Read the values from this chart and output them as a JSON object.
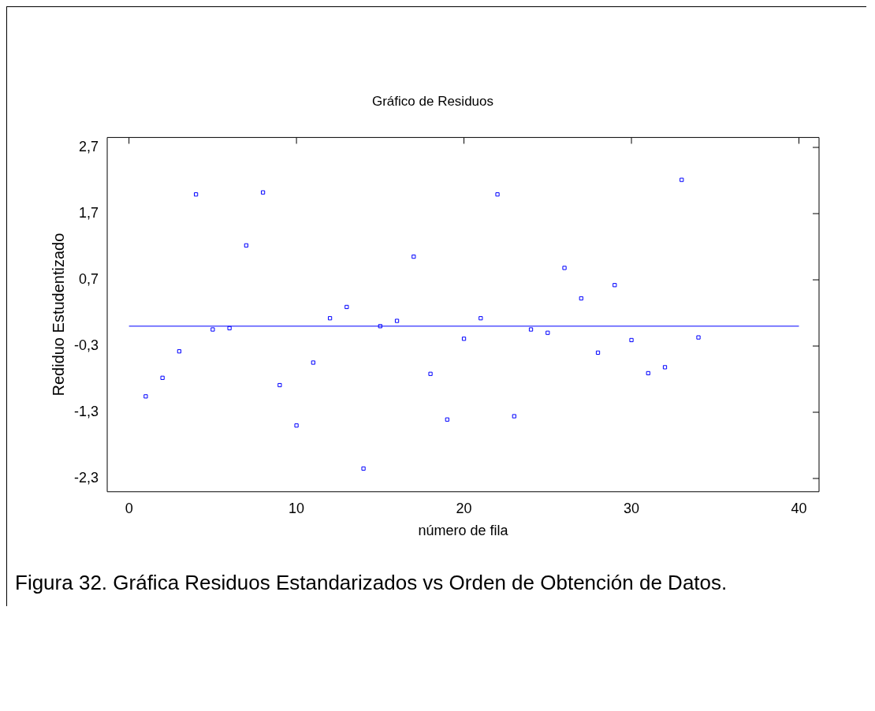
{
  "chart_data": {
    "type": "scatter",
    "title": "Gráfico de Residuos",
    "xlabel": "número de fila",
    "ylabel": "Rediduo Estudentizado",
    "x": [
      1,
      2,
      3,
      4,
      5,
      6,
      7,
      8,
      9,
      10,
      11,
      12,
      13,
      14,
      15,
      16,
      17,
      18,
      19,
      20,
      21,
      22,
      23,
      24,
      25,
      26,
      27,
      28,
      29,
      30,
      31,
      32,
      33,
      34
    ],
    "series": [
      {
        "color": "#0000ff",
        "values": [
          -1.06,
          -0.78,
          -0.38,
          1.99,
          -0.05,
          -0.03,
          1.22,
          2.02,
          -0.89,
          -1.5,
          -0.55,
          0.12,
          0.29,
          -2.15,
          0.0,
          0.08,
          1.05,
          -0.72,
          -1.41,
          -0.19,
          0.12,
          1.99,
          -1.36,
          -0.05,
          -0.1,
          0.88,
          0.42,
          -0.4,
          0.62,
          -0.21,
          -0.71,
          -0.62,
          2.21,
          -0.17
        ]
      }
    ],
    "xlim": [
      -1.3,
      41.2
    ],
    "xticks": [
      0,
      10,
      20,
      30,
      40
    ],
    "ylim": [
      -2.5,
      2.85
    ],
    "yticks": [
      {
        "value": -2.3,
        "label": "-2,3"
      },
      {
        "value": -1.3,
        "label": "-1,3"
      },
      {
        "value": -0.3,
        "label": "-0,3"
      },
      {
        "value": 0.7,
        "label": "0,7"
      },
      {
        "value": 1.7,
        "label": "1,7"
      },
      {
        "value": 2.7,
        "label": "2,7"
      }
    ],
    "ref_lines": [
      {
        "axis": "y",
        "value": 0,
        "color": "#0000ff"
      }
    ],
    "marker": "square",
    "grid": false,
    "legend": false,
    "annotations": [
      "Figura 32. Gráfica Residuos Estandarizados vs Orden de Obtención de Datos."
    ]
  }
}
